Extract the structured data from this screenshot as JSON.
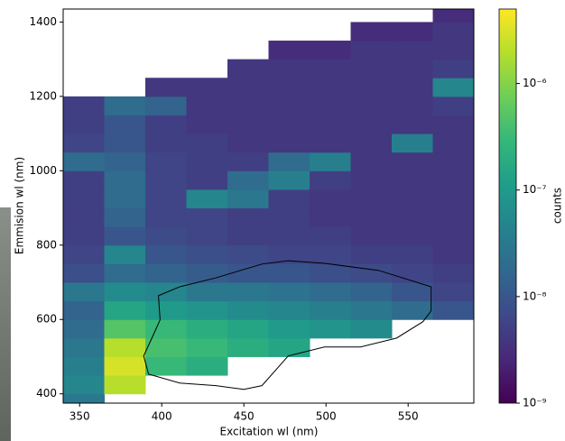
{
  "chart_data": {
    "type": "heatmap",
    "xlabel": "Excitation wl (nm)",
    "ylabel": "Emmision wl (nm)",
    "xlim": [
      340,
      590
    ],
    "ylim": [
      375,
      1435
    ],
    "xticks": [
      350,
      400,
      450,
      500,
      550
    ],
    "yticks": [
      400,
      600,
      800,
      1000,
      1200,
      1400
    ],
    "colormap": "viridis",
    "log_color": true,
    "clim": [
      1e-09,
      5e-06
    ],
    "cticks": [
      {
        "value": 1e-09,
        "label": "10⁻⁹"
      },
      {
        "value": 1e-08,
        "label": "10⁻⁸"
      },
      {
        "value": 1e-07,
        "label": "10⁻⁷"
      },
      {
        "value": 1e-06,
        "label": "10⁻⁶"
      }
    ],
    "colorbar_label": "counts",
    "x_bins": [
      340,
      365,
      390,
      415,
      440,
      465,
      490,
      515,
      540,
      565,
      590
    ],
    "y_bins": [
      350,
      400,
      450,
      500,
      550,
      600,
      650,
      700,
      750,
      800,
      850,
      900,
      950,
      1000,
      1050,
      1100,
      1150,
      1200,
      1250,
      1300,
      1350,
      1400,
      1450
    ],
    "values": [
      [
        3e-08,
        null,
        null,
        null,
        null,
        null,
        null,
        null,
        null,
        null
      ],
      [
        5e-08,
        2e-06,
        null,
        null,
        null,
        null,
        null,
        null,
        null,
        null
      ],
      [
        4e-08,
        3e-06,
        3e-07,
        2e-07,
        null,
        null,
        null,
        null,
        null,
        null
      ],
      [
        3e-08,
        2e-06,
        4e-07,
        3e-07,
        2e-07,
        1.5e-07,
        null,
        null,
        null,
        null
      ],
      [
        2e-08,
        5e-07,
        3e-07,
        2e-07,
        1.5e-07,
        1e-07,
        8e-08,
        6e-08,
        null,
        null
      ],
      [
        1.5e-08,
        1.5e-07,
        1e-07,
        8e-08,
        6e-08,
        5e-08,
        4e-08,
        3e-08,
        2e-08,
        1e-08
      ],
      [
        3e-08,
        6e-08,
        5e-08,
        3e-08,
        3e-08,
        2.5e-08,
        2e-08,
        1.5e-08,
        1e-08,
        6e-09
      ],
      [
        8e-09,
        2e-08,
        1.5e-08,
        1.2e-08,
        1e-08,
        1e-08,
        8e-09,
        7e-09,
        6e-09,
        5e-09
      ],
      [
        6e-09,
        5e-08,
        1e-08,
        8e-09,
        7e-09,
        6e-09,
        6e-09,
        5e-09,
        5e-09,
        4e-09
      ],
      [
        5e-09,
        1e-08,
        7e-09,
        6e-09,
        5e-09,
        5e-09,
        5e-09,
        4e-09,
        4e-09,
        4e-09
      ],
      [
        5e-09,
        1.5e-08,
        6e-09,
        6e-09,
        5e-09,
        5e-09,
        4e-09,
        4e-09,
        4e-09,
        4e-09
      ],
      [
        5e-09,
        2e-08,
        6e-09,
        5e-08,
        3e-08,
        5e-09,
        4e-09,
        4e-09,
        4e-09,
        4e-09
      ],
      [
        5e-09,
        2e-08,
        6e-09,
        5e-09,
        2e-08,
        4e-08,
        5e-09,
        4e-09,
        4e-09,
        4e-09
      ],
      [
        2e-08,
        1.5e-08,
        6e-09,
        5e-09,
        5e-09,
        2e-08,
        4e-08,
        4e-09,
        4e-09,
        4e-09
      ],
      [
        6e-09,
        1e-08,
        5e-09,
        5e-09,
        4e-09,
        4e-09,
        4e-09,
        4e-09,
        4e-08,
        4e-09
      ],
      [
        5e-09,
        1e-08,
        5e-09,
        4e-09,
        4e-09,
        4e-09,
        4e-09,
        4e-09,
        4e-09,
        4e-09
      ],
      [
        5e-09,
        2e-08,
        1.5e-08,
        4e-09,
        4e-09,
        4e-09,
        4e-09,
        4e-09,
        4e-09,
        5e-09
      ],
      [
        null,
        null,
        4e-09,
        4e-09,
        4e-09,
        4e-09,
        4e-09,
        4e-09,
        4e-09,
        5e-08
      ],
      [
        null,
        null,
        null,
        null,
        4e-09,
        4e-09,
        4e-09,
        4e-09,
        4e-09,
        5e-09
      ],
      [
        null,
        null,
        null,
        null,
        null,
        3e-09,
        3e-09,
        4e-09,
        4e-09,
        4e-09
      ],
      [
        null,
        null,
        null,
        null,
        null,
        null,
        null,
        3e-09,
        3e-09,
        4e-09
      ],
      [
        null,
        null,
        null,
        null,
        null,
        null,
        null,
        null,
        null,
        3e-09
      ]
    ],
    "contour": {
      "color": "#000000",
      "x": [
        398,
        411,
        433,
        461,
        477,
        499,
        532,
        564,
        564,
        559,
        543,
        521,
        499,
        477,
        461,
        450,
        433,
        411,
        392,
        389,
        394,
        399
      ],
      "y": [
        664,
        688,
        712,
        749,
        758,
        751,
        732,
        688,
        623,
        594,
        550,
        526,
        526,
        502,
        422,
        412,
        422,
        429,
        453,
        502,
        550,
        599
      ]
    }
  }
}
